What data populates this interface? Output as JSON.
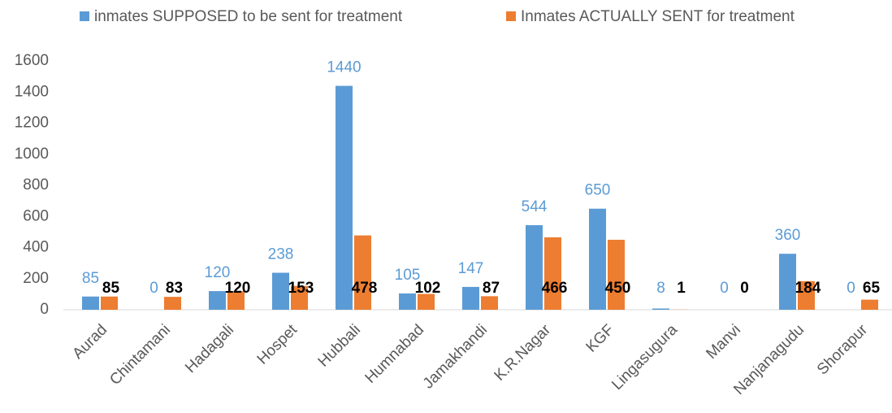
{
  "chart_data": {
    "type": "bar",
    "categories": [
      "Aurad",
      "Chintamani",
      "Hadagali",
      "Hospet",
      "Hubbali",
      "Humnabad",
      "Jamakhandi",
      "K.R.Nagar",
      "KGF",
      "Lingasugura",
      "Manvi",
      "Nanjanagudu",
      "Shorapur"
    ],
    "series": [
      {
        "name": "inmates SUPPOSED to be sent for treatment",
        "color": "#5b9bd5",
        "values": [
          85,
          0,
          120,
          238,
          1440,
          105,
          147,
          544,
          650,
          8,
          0,
          360,
          0
        ]
      },
      {
        "name": "Inmates ACTUALLY SENT for treatment",
        "color": "#ed7d31",
        "values": [
          85,
          83,
          120,
          153,
          478,
          102,
          87,
          466,
          450,
          1,
          0,
          184,
          65
        ]
      }
    ],
    "ylim": [
      0,
      1600
    ],
    "yticks": [
      0,
      200,
      400,
      600,
      800,
      1000,
      1200,
      1400,
      1600
    ],
    "legend": "top"
  }
}
